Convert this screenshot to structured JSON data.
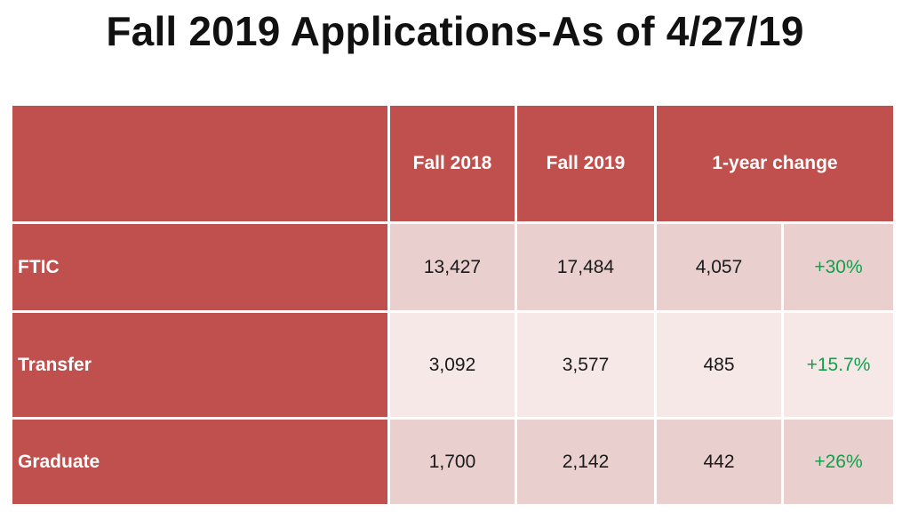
{
  "title": "Fall 2019 Applications-As of 4/27/19",
  "table": {
    "headers": {
      "corner": "",
      "fall_2018": "Fall 2018",
      "fall_2019": "Fall 2019",
      "change": "1-year change"
    },
    "rows": [
      {
        "label": "FTIC",
        "fall_2018": "13,427",
        "fall_2019": "17,484",
        "change_abs": "4,057",
        "change_pct": "+30%"
      },
      {
        "label": "Transfer",
        "fall_2018": "3,092",
        "fall_2019": "3,577",
        "change_abs": "485",
        "change_pct": "+15.7%"
      },
      {
        "label": "Graduate",
        "fall_2018": "1,700",
        "fall_2019": "2,142",
        "change_abs": "442",
        "change_pct": "+26%"
      }
    ]
  },
  "colors": {
    "header_fill": "#c0504d",
    "band_dark": "#e9cfcd",
    "band_light": "#f5e8e7",
    "positive_text": "#12a14a"
  }
}
